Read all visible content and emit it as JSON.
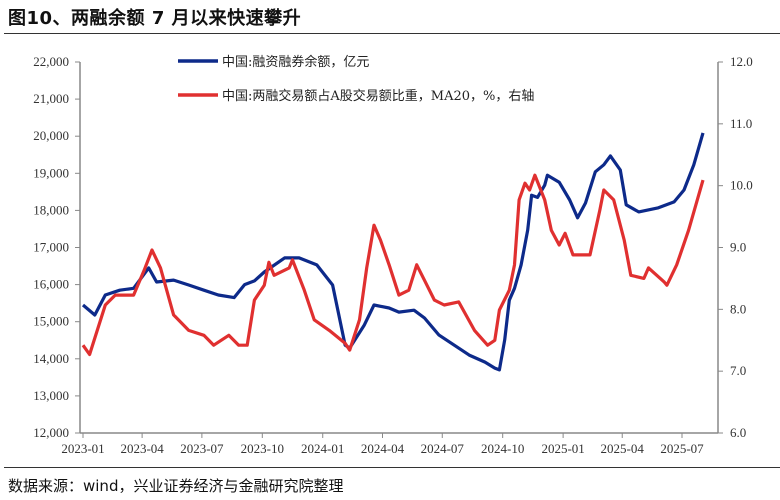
{
  "title": "图10、两融余额 7 月以来快速攀升",
  "footer": "数据来源：wind，兴业证券经济与金融研究院整理",
  "chart_data": {
    "type": "line",
    "title": "",
    "xlabel": "",
    "ylabel": "",
    "x_ticks": [
      "2023-01",
      "2023-04",
      "2023-07",
      "2023-10",
      "2024-01",
      "2024-04",
      "2024-07",
      "2024-10",
      "2025-01",
      "2025-04",
      "2025-07"
    ],
    "y_left": {
      "ylim": [
        12000,
        22000
      ],
      "ticks": [
        "12,000",
        "13,000",
        "14,000",
        "15,000",
        "16,000",
        "17,000",
        "18,000",
        "19,000",
        "20,000",
        "21,000",
        "22,000"
      ]
    },
    "y_right": {
      "ylim": [
        6.0,
        12.0
      ],
      "ticks": [
        "6.0",
        "7.0",
        "8.0",
        "9.0",
        "10.0",
        "11.0",
        "12.0"
      ]
    },
    "grid": false,
    "legend_placement": "top-left",
    "series": [
      {
        "name": "中国:融资融券余额，亿元",
        "axis": "left",
        "color": "#0d2a8a",
        "points": [
          [
            "2023-01-01",
            15450
          ],
          [
            "2023-01-19",
            15180
          ],
          [
            "2023-02-04",
            15720
          ],
          [
            "2023-02-26",
            15850
          ],
          [
            "2023-03-19",
            15900
          ],
          [
            "2023-04-11",
            16450
          ],
          [
            "2023-04-23",
            16070
          ],
          [
            "2023-05-19",
            16120
          ],
          [
            "2023-06-11",
            15990
          ],
          [
            "2023-07-04",
            15850
          ],
          [
            "2023-07-26",
            15720
          ],
          [
            "2023-08-19",
            15650
          ],
          [
            "2023-09-04",
            16000
          ],
          [
            "2023-09-19",
            16100
          ],
          [
            "2023-10-04",
            16340
          ],
          [
            "2023-11-04",
            16720
          ],
          [
            "2023-11-26",
            16720
          ],
          [
            "2023-12-23",
            16530
          ],
          [
            "2024-01-16",
            15990
          ],
          [
            "2024-02-04",
            14370
          ],
          [
            "2024-02-11",
            14290
          ],
          [
            "2024-03-04",
            14900
          ],
          [
            "2024-03-19",
            15450
          ],
          [
            "2024-04-11",
            15370
          ],
          [
            "2024-04-26",
            15260
          ],
          [
            "2024-05-19",
            15310
          ],
          [
            "2024-06-04",
            15100
          ],
          [
            "2024-06-26",
            14640
          ],
          [
            "2024-07-19",
            14370
          ],
          [
            "2024-08-11",
            14100
          ],
          [
            "2024-09-04",
            13910
          ],
          [
            "2024-09-19",
            13750
          ],
          [
            "2024-09-26",
            13700
          ],
          [
            "2024-10-04",
            14510
          ],
          [
            "2024-10-11",
            15580
          ],
          [
            "2024-10-19",
            15900
          ],
          [
            "2024-10-29",
            16530
          ],
          [
            "2024-11-08",
            17470
          ],
          [
            "2024-11-14",
            18410
          ],
          [
            "2024-11-23",
            18350
          ],
          [
            "2024-12-04",
            18680
          ],
          [
            "2024-12-08",
            18950
          ],
          [
            "2024-12-26",
            18760
          ],
          [
            "2025-01-11",
            18280
          ],
          [
            "2025-01-23",
            17800
          ],
          [
            "2025-02-04",
            18200
          ],
          [
            "2025-02-19",
            19040
          ],
          [
            "2025-03-04",
            19230
          ],
          [
            "2025-03-14",
            19470
          ],
          [
            "2025-03-29",
            19090
          ],
          [
            "2025-04-07",
            18150
          ],
          [
            "2025-04-26",
            17960
          ],
          [
            "2025-05-26",
            18070
          ],
          [
            "2025-06-19",
            18230
          ],
          [
            "2025-07-04",
            18550
          ],
          [
            "2025-07-19",
            19230
          ],
          [
            "2025-08-02",
            20090
          ]
        ]
      },
      {
        "name": "中国:两融交易额占A股交易额比重，MA20，%，右轴",
        "axis": "right",
        "color": "#e03030",
        "points": [
          [
            "2023-01-01",
            7.42
          ],
          [
            "2023-01-11",
            7.27
          ],
          [
            "2023-02-04",
            8.07
          ],
          [
            "2023-02-19",
            8.23
          ],
          [
            "2023-03-19",
            8.23
          ],
          [
            "2023-04-04",
            8.63
          ],
          [
            "2023-04-16",
            8.96
          ],
          [
            "2023-04-29",
            8.67
          ],
          [
            "2023-05-19",
            7.91
          ],
          [
            "2023-06-11",
            7.66
          ],
          [
            "2023-07-04",
            7.58
          ],
          [
            "2023-07-19",
            7.42
          ],
          [
            "2023-08-11",
            7.58
          ],
          [
            "2023-08-26",
            7.42
          ],
          [
            "2023-09-08",
            7.42
          ],
          [
            "2023-09-19",
            8.15
          ],
          [
            "2023-10-04",
            8.39
          ],
          [
            "2023-10-11",
            8.76
          ],
          [
            "2023-10-19",
            8.55
          ],
          [
            "2023-11-11",
            8.67
          ],
          [
            "2023-11-16",
            8.8
          ],
          [
            "2023-12-04",
            8.31
          ],
          [
            "2023-12-19",
            7.83
          ],
          [
            "2024-01-11",
            7.66
          ],
          [
            "2024-02-04",
            7.45
          ],
          [
            "2024-02-11",
            7.34
          ],
          [
            "2024-02-26",
            7.83
          ],
          [
            "2024-03-08",
            8.67
          ],
          [
            "2024-03-19",
            9.36
          ],
          [
            "2024-03-29",
            9.12
          ],
          [
            "2024-04-11",
            8.72
          ],
          [
            "2024-04-26",
            8.23
          ],
          [
            "2024-05-11",
            8.31
          ],
          [
            "2024-05-23",
            8.72
          ],
          [
            "2024-06-04",
            8.47
          ],
          [
            "2024-06-19",
            8.15
          ],
          [
            "2024-07-04",
            8.07
          ],
          [
            "2024-07-26",
            8.12
          ],
          [
            "2024-08-19",
            7.66
          ],
          [
            "2024-09-08",
            7.42
          ],
          [
            "2024-09-19",
            7.5
          ],
          [
            "2024-09-26",
            7.99
          ],
          [
            "2024-10-11",
            8.31
          ],
          [
            "2024-10-19",
            8.72
          ],
          [
            "2024-10-26",
            9.77
          ],
          [
            "2024-11-04",
            10.04
          ],
          [
            "2024-11-11",
            9.93
          ],
          [
            "2024-11-19",
            10.17
          ],
          [
            "2024-12-04",
            9.77
          ],
          [
            "2024-12-14",
            9.28
          ],
          [
            "2024-12-26",
            9.04
          ],
          [
            "2025-01-04",
            9.23
          ],
          [
            "2025-01-16",
            8.88
          ],
          [
            "2025-02-11",
            8.88
          ],
          [
            "2025-02-26",
            9.61
          ],
          [
            "2025-03-04",
            9.93
          ],
          [
            "2025-03-19",
            9.77
          ],
          [
            "2025-04-04",
            9.12
          ],
          [
            "2025-04-14",
            8.55
          ],
          [
            "2025-05-04",
            8.5
          ],
          [
            "2025-05-11",
            8.67
          ],
          [
            "2025-06-04",
            8.44
          ],
          [
            "2025-06-08",
            8.39
          ],
          [
            "2025-06-23",
            8.72
          ],
          [
            "2025-07-11",
            9.28
          ],
          [
            "2025-08-02",
            10.09
          ]
        ]
      }
    ]
  }
}
